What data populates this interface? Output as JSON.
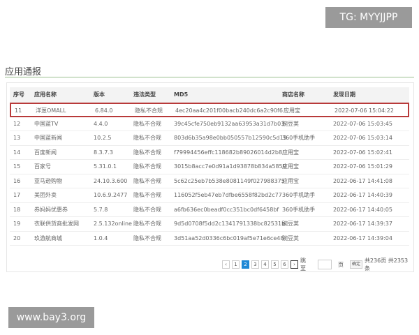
{
  "watermarks": {
    "tg": "TG: MYYJJPP",
    "site": "www.bay3.org"
  },
  "section_title": "应用通报",
  "table": {
    "columns": [
      "序号",
      "应用名称",
      "版本",
      "违法类型",
      "MD5",
      "商店名称",
      "发现日期"
    ],
    "rows": [
      [
        "11",
        "洋葱OMALL",
        "6.84.0",
        "隐私不合规",
        "4ec20aa4c201f00bacb240dc6a2c90f6",
        "应用宝",
        "2022-07-06 15:04:22"
      ],
      [
        "12",
        "中国蓝TV",
        "4.4.0",
        "隐私不合规",
        "39c45cfe750eb9132aa63953a31d7b03",
        "豌豆荚",
        "2022-07-06 15:03:45"
      ],
      [
        "13",
        "中国蓝新闻",
        "10.2.5",
        "隐私不合规",
        "803d6b35a98e0bb050557b12590c5d19",
        "360手机助手",
        "2022-07-06 15:03:14"
      ],
      [
        "14",
        "百度新闻",
        "8.3.7.3",
        "隐私不合规",
        "f79994456effc118682b89026014d2b8",
        "应用宝",
        "2022-07-06 15:02:41"
      ],
      [
        "15",
        "百家号",
        "5.31.0.1",
        "隐私不合规",
        "3015b8acc7e0d91a1d93878b834a5859",
        "应用宝",
        "2022-07-06 15:01:29"
      ],
      [
        "16",
        "亚马逊购物",
        "24.10.3.600",
        "隐私不合规",
        "5c62c25eb7b538e8081149f027988375",
        "应用宝",
        "2022-06-17 14:41:08"
      ],
      [
        "17",
        "美团外卖",
        "10.6.9.2477",
        "隐私不合规",
        "116052f5eb47eb7dfbe6558f82bd2c77",
        "360手机助手",
        "2022-06-17 14:40:39"
      ],
      [
        "18",
        "券妈妈优惠券",
        "5.7.8",
        "隐私不合规",
        "a6fb636ec0beadf0cc351bc0df6458bf",
        "360手机助手",
        "2022-06-17 14:40:05"
      ],
      [
        "19",
        "衣联供货商批发网",
        "2.5.132online",
        "隐私不合规",
        "9d5d0708f5dd2c1341791338bc82531b",
        "豌豆荚",
        "2022-06-17 14:39:37"
      ],
      [
        "20",
        "玖游航商城",
        "1.0.4",
        "隐私不合规",
        "3d51aa52d0336c6bc019af5e71e6ce48",
        "豌豆荚",
        "2022-06-17 14:39:04"
      ]
    ],
    "highlighted_row": 0,
    "highlight_color": "#b83a3a"
  },
  "pagination": {
    "prev": "‹",
    "pages": [
      "1",
      "2",
      "3",
      "4",
      "5",
      "6"
    ],
    "current": "2",
    "next": "›",
    "jump_label": "跳至",
    "page_unit": "页",
    "confirm": "确定",
    "summary": "共236页 共2353条"
  },
  "colors": {
    "accent": "#1e88d6",
    "title_line": "#9bbf8e"
  }
}
